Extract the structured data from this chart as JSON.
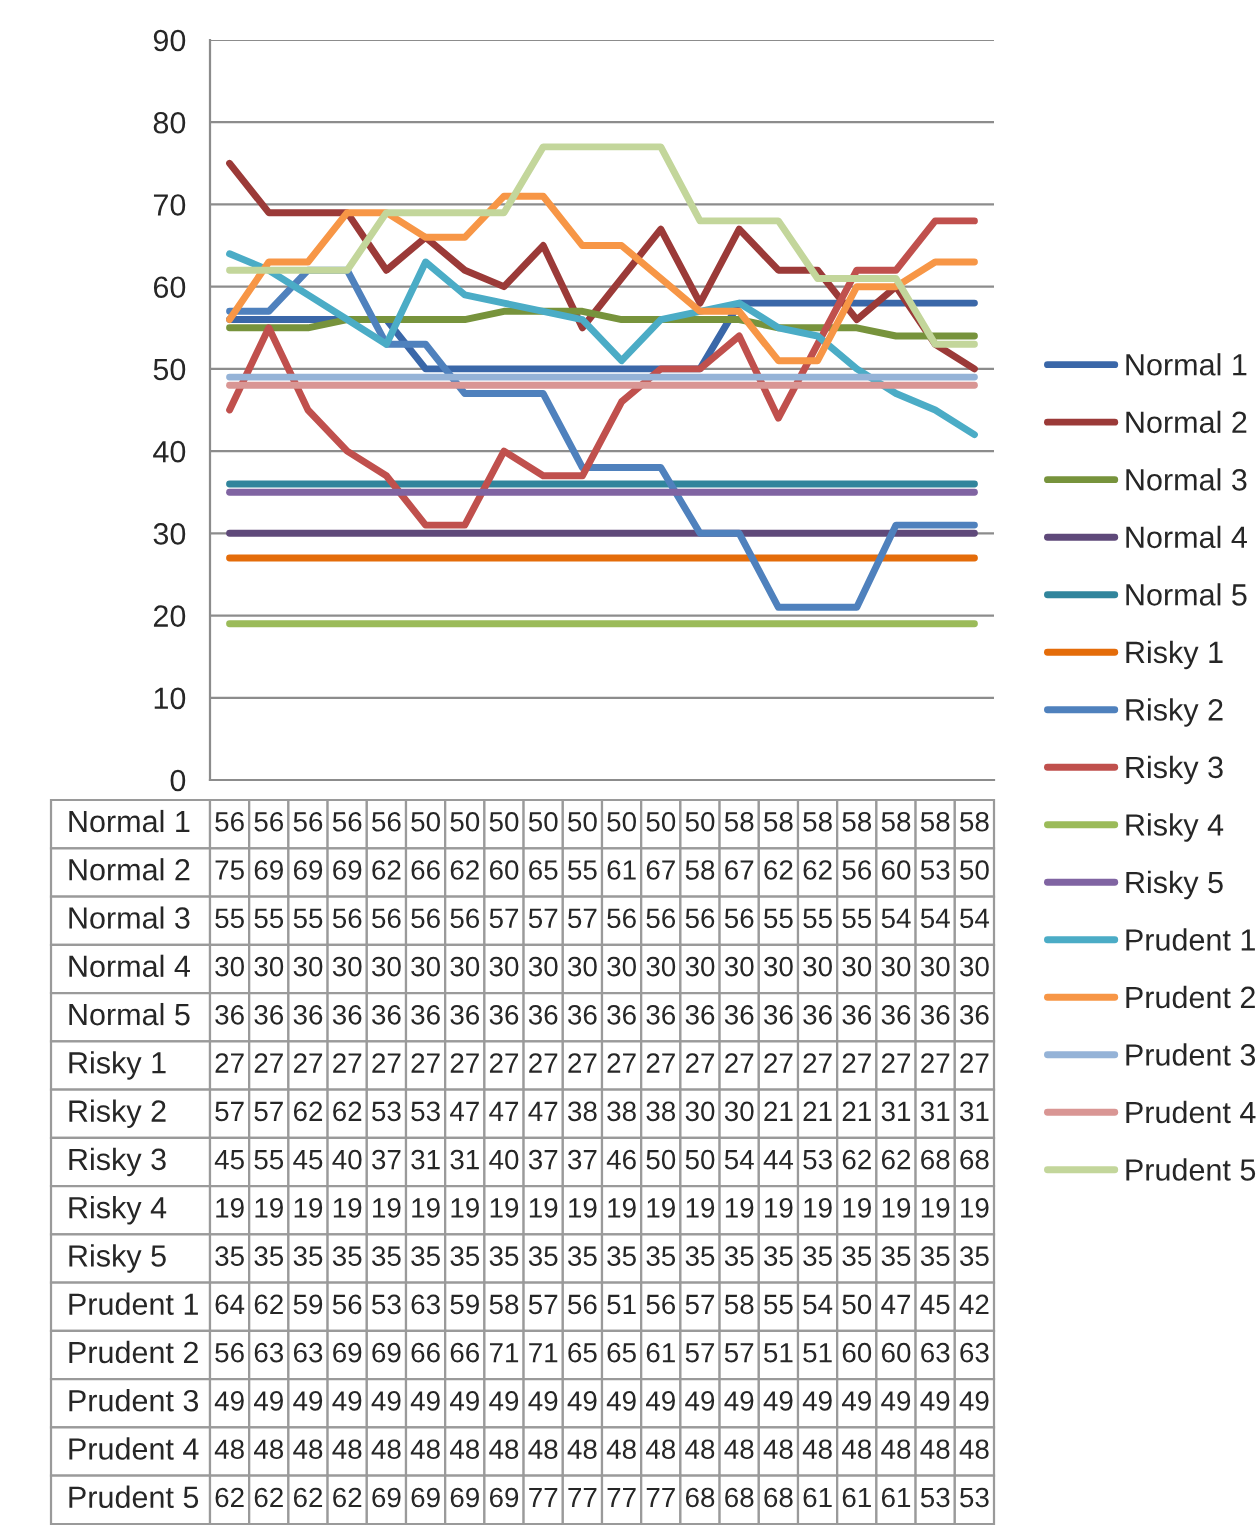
{
  "chart_data": {
    "type": "line",
    "categories": [
      null,
      null,
      null,
      null,
      null,
      null,
      null,
      null,
      null,
      null,
      null,
      null,
      null,
      null,
      null,
      null,
      null,
      null,
      null,
      null
    ],
    "ylim": [
      0,
      90
    ],
    "yticks": [
      0,
      10,
      20,
      30,
      40,
      50,
      60,
      70,
      80,
      90
    ],
    "grid": "y",
    "legend": "right",
    "data_labels": true,
    "marker": "none",
    "line_style": "solid",
    "series": [
      {
        "name": "Normal 1",
        "color": "#3a67a8",
        "values": [
          56,
          56,
          56,
          56,
          56,
          50,
          50,
          50,
          50,
          50,
          50,
          50,
          50,
          58,
          58,
          58,
          58,
          58,
          58,
          58
        ]
      },
      {
        "name": "Normal 2",
        "color": "#9b3a38",
        "values": [
          75,
          69,
          69,
          69,
          62,
          66,
          62,
          60,
          65,
          55,
          61,
          67,
          58,
          67,
          62,
          62,
          56,
          60,
          53,
          50
        ]
      },
      {
        "name": "Normal 3",
        "color": "#77933c",
        "values": [
          55,
          55,
          55,
          56,
          56,
          56,
          56,
          57,
          57,
          57,
          56,
          56,
          56,
          56,
          55,
          55,
          55,
          54,
          54,
          54
        ]
      },
      {
        "name": "Normal 4",
        "color": "#5f497a",
        "values": [
          30,
          30,
          30,
          30,
          30,
          30,
          30,
          30,
          30,
          30,
          30,
          30,
          30,
          30,
          30,
          30,
          30,
          30,
          30,
          30
        ]
      },
      {
        "name": "Normal 5",
        "color": "#31859c",
        "values": [
          36,
          36,
          36,
          36,
          36,
          36,
          36,
          36,
          36,
          36,
          36,
          36,
          36,
          36,
          36,
          36,
          36,
          36,
          36,
          36
        ]
      },
      {
        "name": "Risky 1",
        "color": "#e46c0a",
        "values": [
          27,
          27,
          27,
          27,
          27,
          27,
          27,
          27,
          27,
          27,
          27,
          27,
          27,
          27,
          27,
          27,
          27,
          27,
          27,
          27
        ]
      },
      {
        "name": "Risky 2",
        "color": "#4f81bd",
        "values": [
          57,
          57,
          62,
          62,
          53,
          53,
          47,
          47,
          47,
          38,
          38,
          38,
          30,
          30,
          21,
          21,
          21,
          31,
          31,
          31
        ]
      },
      {
        "name": "Risky 3",
        "color": "#c0504d",
        "values": [
          45,
          55,
          45,
          40,
          37,
          31,
          31,
          40,
          37,
          37,
          46,
          50,
          50,
          54,
          44,
          53,
          62,
          62,
          68,
          68
        ]
      },
      {
        "name": "Risky 4",
        "color": "#9bbb59",
        "values": [
          19,
          19,
          19,
          19,
          19,
          19,
          19,
          19,
          19,
          19,
          19,
          19,
          19,
          19,
          19,
          19,
          19,
          19,
          19,
          19
        ]
      },
      {
        "name": "Risky 5",
        "color": "#8064a2",
        "values": [
          35,
          35,
          35,
          35,
          35,
          35,
          35,
          35,
          35,
          35,
          35,
          35,
          35,
          35,
          35,
          35,
          35,
          35,
          35,
          35
        ]
      },
      {
        "name": "Prudent 1",
        "color": "#4bacc6",
        "values": [
          64,
          62,
          59,
          56,
          53,
          63,
          59,
          58,
          57,
          56,
          51,
          56,
          57,
          58,
          55,
          54,
          50,
          47,
          45,
          42
        ]
      },
      {
        "name": "Prudent 2",
        "color": "#f79646",
        "values": [
          56,
          63,
          63,
          69,
          69,
          66,
          66,
          71,
          71,
          65,
          65,
          61,
          57,
          57,
          51,
          51,
          60,
          60,
          63,
          63
        ]
      },
      {
        "name": "Prudent 3",
        "color": "#95b3d7",
        "values": [
          49,
          49,
          49,
          49,
          49,
          49,
          49,
          49,
          49,
          49,
          49,
          49,
          49,
          49,
          49,
          49,
          49,
          49,
          49,
          49
        ]
      },
      {
        "name": "Prudent 4",
        "color": "#d99694",
        "values": [
          48,
          48,
          48,
          48,
          48,
          48,
          48,
          48,
          48,
          48,
          48,
          48,
          48,
          48,
          48,
          48,
          48,
          48,
          48,
          48
        ]
      },
      {
        "name": "Prudent 5",
        "color": "#c3d69b",
        "values": [
          62,
          62,
          62,
          62,
          69,
          69,
          69,
          69,
          77,
          77,
          77,
          77,
          68,
          68,
          68,
          61,
          61,
          61,
          53,
          53
        ]
      }
    ]
  }
}
